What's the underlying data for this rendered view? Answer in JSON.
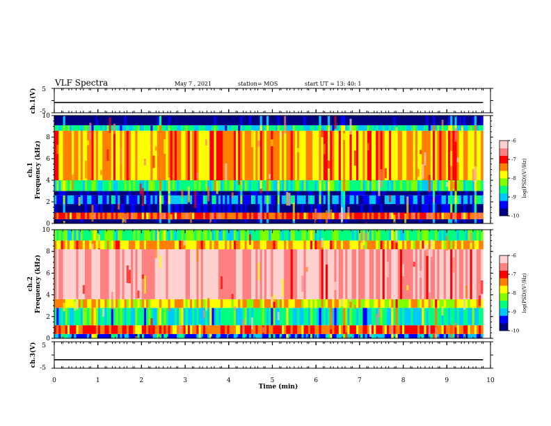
{
  "header": {
    "title": "VLF Spectra",
    "date": "May 7  , 2021",
    "station": "station= MOS",
    "start": "start  UT  =   13: 40: 1"
  },
  "chart_data": [
    {
      "type": "line",
      "title": "",
      "ylabel": "ch.1(V)",
      "ylim": [
        -5,
        5
      ],
      "yticks": [
        "5",
        "-5"
      ],
      "x": [
        0,
        9.83
      ],
      "values": [
        -0.8,
        -0.8
      ]
    },
    {
      "type": "heatmap",
      "title": "",
      "ylabel": "ch.1\nFrequency (kHz)",
      "ylim": [
        0,
        10
      ],
      "yticks": [
        "0",
        "2",
        "4",
        "6",
        "8",
        "10"
      ],
      "colorbar": {
        "label": "log(PSD)(V²/Hz)",
        "range": [
          -10,
          -6
        ],
        "ticks": [
          "-6",
          "-7",
          "-8",
          "-9",
          "-10"
        ]
      },
      "bands": [
        {
          "freq": [
            0.0,
            0.4
          ],
          "level": -10
        },
        {
          "freq": [
            0.4,
            1.0
          ],
          "level": -7.2
        },
        {
          "freq": [
            1.0,
            1.8
          ],
          "level": -9.8
        },
        {
          "freq": [
            1.8,
            2.6
          ],
          "level": -9.2
        },
        {
          "freq": [
            2.6,
            3.0
          ],
          "level": -9.8
        },
        {
          "freq": [
            3.0,
            4.0
          ],
          "level": -8.6
        },
        {
          "freq": [
            4.0,
            8.6
          ],
          "level": -7.5
        },
        {
          "freq": [
            8.6,
            9.1
          ],
          "level": -8.8
        },
        {
          "freq": [
            9.1,
            10.0
          ],
          "level": -10
        }
      ]
    },
    {
      "type": "heatmap",
      "title": "",
      "ylabel": "ch.2\nFrequency (kHz)",
      "ylim": [
        0,
        10
      ],
      "yticks": [
        "0",
        "2",
        "4",
        "6",
        "8",
        "10"
      ],
      "colorbar": {
        "label": "log(PSD)(V²/Hz)",
        "range": [
          -10,
          -6
        ],
        "ticks": [
          "-6",
          "-7",
          "-8",
          "-9",
          "-10"
        ]
      },
      "bands": [
        {
          "freq": [
            0.0,
            0.4
          ],
          "level": -9.2
        },
        {
          "freq": [
            0.4,
            1.2
          ],
          "level": -7.3
        },
        {
          "freq": [
            1.2,
            2.8
          ],
          "level": -8.8
        },
        {
          "freq": [
            2.8,
            3.6
          ],
          "level": -7.8
        },
        {
          "freq": [
            3.6,
            8.2
          ],
          "level": -6.4
        },
        {
          "freq": [
            8.2,
            9.0
          ],
          "level": -7.6
        },
        {
          "freq": [
            9.0,
            10.0
          ],
          "level": -8.5
        }
      ]
    },
    {
      "type": "line",
      "title": "",
      "ylabel": "ch.3(V)",
      "ylim": [
        -5,
        5
      ],
      "yticks": [
        "5",
        "-5"
      ],
      "x": [
        0,
        9.83
      ],
      "values": [
        -1.8,
        -1.8
      ]
    }
  ],
  "xaxis": {
    "label": "Time  (min)",
    "xlim": [
      0,
      10
    ],
    "xend": 9.83,
    "ticks": [
      "0",
      "1",
      "2",
      "3",
      "4",
      "5",
      "6",
      "7",
      "8",
      "9",
      "10"
    ]
  },
  "colors": {
    "colormap": [
      "#000080",
      "#0000ff",
      "#00c8ff",
      "#00ff80",
      "#80ff00",
      "#ffff00",
      "#ff8000",
      "#ff0000",
      "#ff8080",
      "#ffd0d0"
    ]
  }
}
